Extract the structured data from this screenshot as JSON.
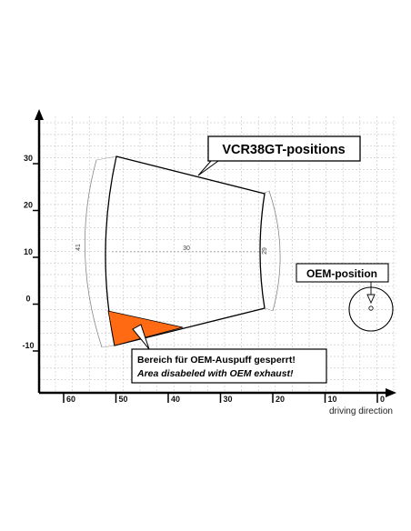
{
  "diagram": {
    "y_ticks": [
      "30",
      "20",
      "10",
      "0",
      "-10"
    ],
    "x_ticks": [
      "60",
      "50",
      "40",
      "30",
      "20",
      "10",
      "0"
    ],
    "x_axis_label": "driving direction",
    "dimensions": {
      "left_arc": "41",
      "width": "30",
      "right_arc": "29"
    },
    "callouts": {
      "vcr": "VCR38GT-positions",
      "oem": "OEM-position",
      "warning_de": "Bereich für OEM-Auspuff gesperrt!",
      "warning_en": "Area disabeled with OEM exhaust!"
    },
    "colors": {
      "restricted_area": "#ff6a13",
      "grid": "#b8b8b8"
    }
  }
}
